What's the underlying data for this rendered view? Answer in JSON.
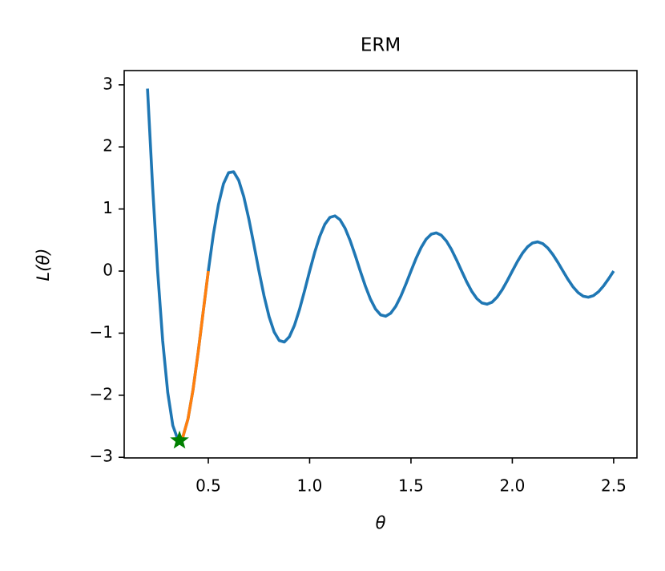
{
  "chart_data": {
    "type": "line",
    "title": "ERM",
    "xlabel": "θ",
    "ylabel": "L(θ)",
    "xlim": [
      0.085,
      2.615
    ],
    "ylim": [
      -3.01,
      3.23
    ],
    "xticks": [
      0.5,
      {
        "value": 1,
        "label": "1.0"
      },
      1.5,
      {
        "value": 2,
        "label": "2.0"
      },
      2.5
    ],
    "yticks": [
      {
        "value": -3,
        "label": "−3"
      },
      {
        "value": -2,
        "label": "−2"
      },
      {
        "value": -1,
        "label": "−1"
      },
      0,
      1,
      2,
      3
    ],
    "grid": false,
    "series": [
      {
        "color": "#1f77b4",
        "style": "line",
        "x": [
          0.2,
          0.225,
          0.25,
          0.275,
          0.3,
          0.325,
          0.35,
          0.375,
          0.4,
          0.425,
          0.45,
          0.475,
          0.5,
          0.525,
          0.55,
          0.575,
          0.6,
          0.625,
          0.65,
          0.675,
          0.7,
          0.725,
          0.75,
          0.775,
          0.8,
          0.825,
          0.85,
          0.875,
          0.9,
          0.925,
          0.95,
          0.975,
          1.0,
          1.025,
          1.05,
          1.075,
          1.1,
          1.125,
          1.15,
          1.175,
          1.2,
          1.225,
          1.25,
          1.275,
          1.3,
          1.325,
          1.35,
          1.375,
          1.4,
          1.425,
          1.45,
          1.475,
          1.5,
          1.525,
          1.55,
          1.575,
          1.6,
          1.625,
          1.65,
          1.675,
          1.7,
          1.725,
          1.75,
          1.775,
          1.8,
          1.825,
          1.85,
          1.875,
          1.9,
          1.925,
          1.95,
          1.975,
          2.0,
          2.025,
          2.05,
          2.075,
          2.1,
          2.125,
          2.15,
          2.175,
          2.2,
          2.225,
          2.25,
          2.275,
          2.3,
          2.325,
          2.35,
          2.375,
          2.4,
          2.425,
          2.45,
          2.475,
          2.5
        ],
        "values": [
          2.939,
          1.373,
          0,
          -1.124,
          -1.959,
          -2.489,
          -2.717,
          -2.667,
          -2.378,
          -1.904,
          -1.306,
          -0.651,
          0,
          0.589,
          1.069,
          1.407,
          1.585,
          1.6,
          1.463,
          1.199,
          0.84,
          0.426,
          0,
          -0.399,
          -0.735,
          -0.981,
          -1.119,
          -1.143,
          -1.057,
          -0.875,
          -0.619,
          -0.317,
          0,
          0.301,
          0.56,
          0.753,
          0.865,
          0.889,
          0.827,
          0.689,
          0.49,
          0.252,
          0,
          -0.242,
          -0.452,
          -0.611,
          -0.705,
          -0.727,
          -0.679,
          -0.568,
          -0.405,
          -0.209,
          0,
          0.203,
          0.379,
          0.514,
          0.594,
          0.615,
          0.576,
          0.483,
          0.346,
          0.179,
          0,
          -0.174,
          -0.327,
          -0.443,
          -0.514,
          -0.533,
          -0.501,
          -0.42,
          -0.301,
          -0.156,
          0,
          0.153,
          0.287,
          0.39,
          0.453,
          0.471,
          0.442,
          0.372,
          0.267,
          0.139,
          0,
          -0.136,
          -0.256,
          -0.348,
          -0.405,
          -0.421,
          -0.396,
          -0.334,
          -0.24,
          -0.125,
          0
        ]
      },
      {
        "color": "#ff7f0e",
        "style": "line",
        "x": [
          0.35,
          0.375,
          0.4,
          0.425,
          0.45,
          0.475,
          0.5
        ],
        "values": [
          -2.717,
          -2.667,
          -2.378,
          -1.904,
          -1.306,
          -0.651,
          0
        ]
      },
      {
        "color": "green",
        "style": "star",
        "x": [
          0.358
        ],
        "values": [
          -2.73
        ]
      }
    ]
  }
}
